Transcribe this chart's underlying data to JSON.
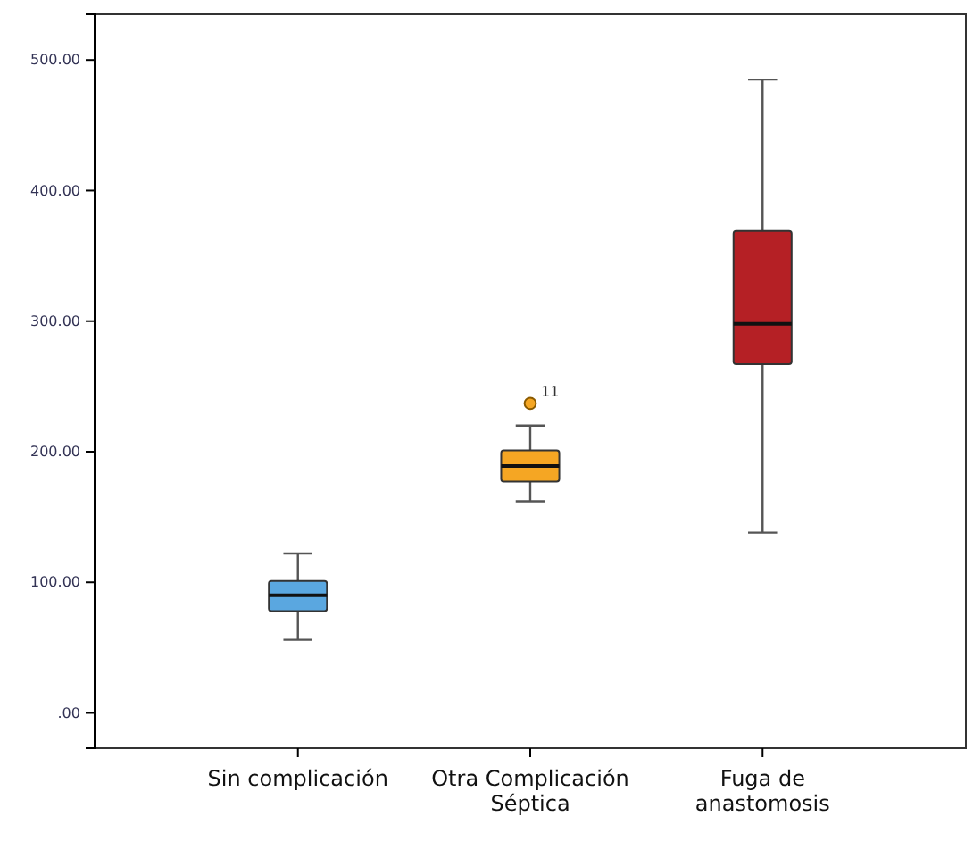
{
  "chart_data": {
    "type": "box",
    "categories": [
      "Sin complicación",
      "Otra Complicación Séptica",
      "Fuga de anastomosis"
    ],
    "colors": [
      "#5aa7e0",
      "#f5a623",
      "#b52025"
    ],
    "boxes": [
      {
        "low": 56,
        "q1": 78,
        "median": 90,
        "q3": 101,
        "high": 122
      },
      {
        "low": 162,
        "q1": 177,
        "median": 189,
        "q3": 201,
        "high": 220,
        "outliers": [
          237
        ]
      },
      {
        "low": 138,
        "q1": 267,
        "median": 298,
        "q3": 369,
        "high": 485
      }
    ],
    "ylim": [
      -27,
      535
    ],
    "yticks": [
      {
        "value": 0,
        "label": ".00"
      },
      {
        "value": 100,
        "label": "100.00"
      },
      {
        "value": 200,
        "label": "200.00"
      },
      {
        "value": 300,
        "label": "300.00"
      },
      {
        "value": 400,
        "label": "400.00"
      },
      {
        "value": 500,
        "label": "500.00"
      }
    ],
    "grid": false,
    "annotations": [
      "11"
    ]
  }
}
